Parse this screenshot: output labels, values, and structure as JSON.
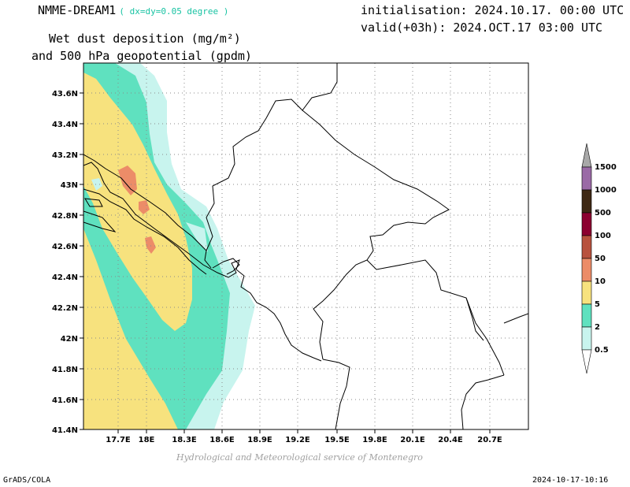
{
  "header": {
    "model": "NMME-DREAM1",
    "resolution": "( dx=dy=0.05 degree )",
    "variable_line1": "Wet dust deposition (mg/m²)",
    "variable_line2": "and 500 hPa geopotential (gpdm)",
    "initialisation": "initialisation: 2024.10.17. 00:00 UTC",
    "valid": "valid(+03h): 2024.OCT.17 03:00 UTC"
  },
  "footer": {
    "credit": "Hydrological and Meteorological service of Montenegro",
    "software": "GrADS/COLA",
    "timestamp": "2024-10-17-10:16"
  },
  "map": {
    "lon_range": [
      17.5,
      21.0
    ],
    "lat_range": [
      41.4,
      43.75
    ],
    "lon_ticks": [
      "17.7E",
      "18E",
      "18.3E",
      "18.6E",
      "18.9E",
      "19.2E",
      "19.5E",
      "19.8E",
      "20.1E",
      "20.4E",
      "20.7E"
    ],
    "lat_ticks": [
      "41.4N",
      "41.6N",
      "41.8N",
      "42N",
      "42.2N",
      "42.4N",
      "42.6N",
      "42.8N",
      "43N",
      "43.2N",
      "43.4N",
      "43.6N"
    ],
    "grid": "dotted"
  },
  "colorbar": {
    "labels": [
      "0.5",
      "2",
      "5",
      "10",
      "50",
      "100",
      "500",
      "1000",
      "1500"
    ],
    "colors": [
      "#c8f4ee",
      "#5fe1bf",
      "#f7e27e",
      "#ec8c68",
      "#b8523e",
      "#8c0030",
      "#3e2814",
      "#9a6aa6",
      "#a8a8a8"
    ]
  }
}
